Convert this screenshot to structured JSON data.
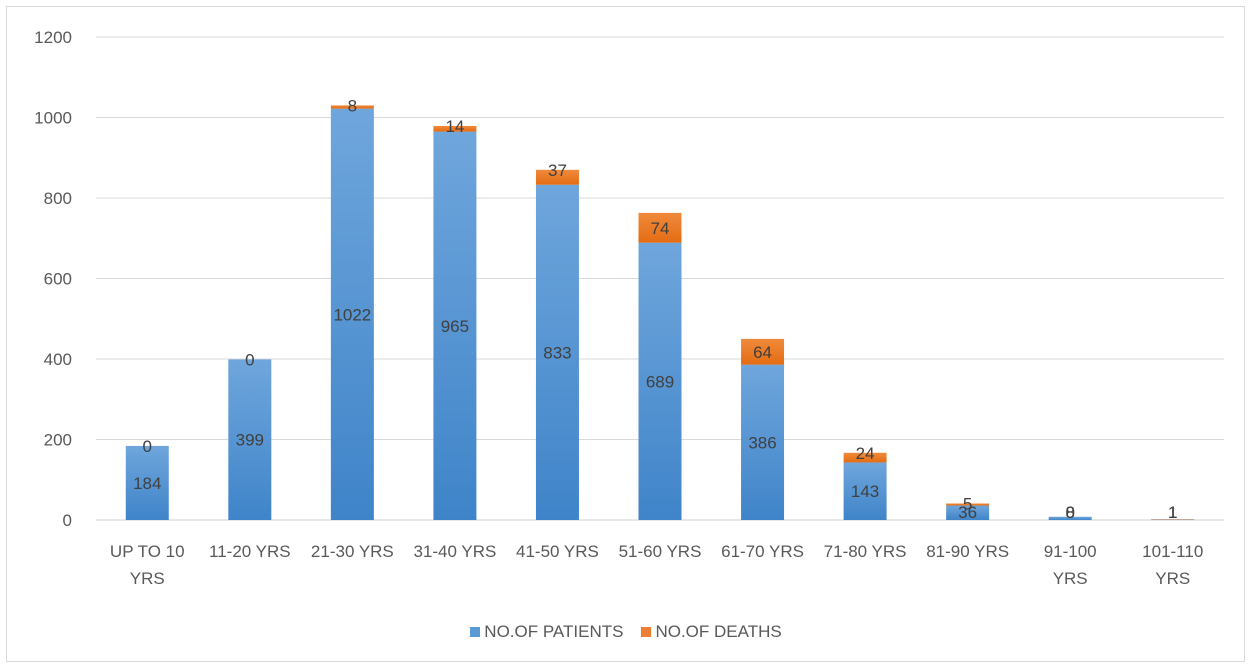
{
  "chart_data": {
    "type": "bar",
    "stacked": true,
    "categories": [
      [
        "UP TO 10",
        "YRS"
      ],
      [
        "11-20 YRS"
      ],
      [
        "21-30 YRS"
      ],
      [
        "31-40 YRS"
      ],
      [
        "41-50 YRS"
      ],
      [
        "51-60 YRS"
      ],
      [
        "61-70 YRS"
      ],
      [
        "71-80 YRS"
      ],
      [
        "81-90 YRS"
      ],
      [
        "91-100",
        "YRS"
      ],
      [
        "101-110",
        "YRS"
      ]
    ],
    "series": [
      {
        "name": "NO.OF PATIENTS",
        "color": "#5b9bd5",
        "values": [
          184,
          399,
          1022,
          965,
          833,
          689,
          386,
          143,
          36,
          8,
          1
        ]
      },
      {
        "name": "NO.OF DEATHS",
        "color": "#ed7d31",
        "values": [
          0,
          0,
          8,
          14,
          37,
          74,
          64,
          24,
          5,
          0,
          1
        ]
      }
    ],
    "ylim": [
      0,
      1200
    ],
    "yticks": [
      0,
      200,
      400,
      600,
      800,
      1000,
      1200
    ],
    "grid": true,
    "legend_position": "bottom"
  }
}
